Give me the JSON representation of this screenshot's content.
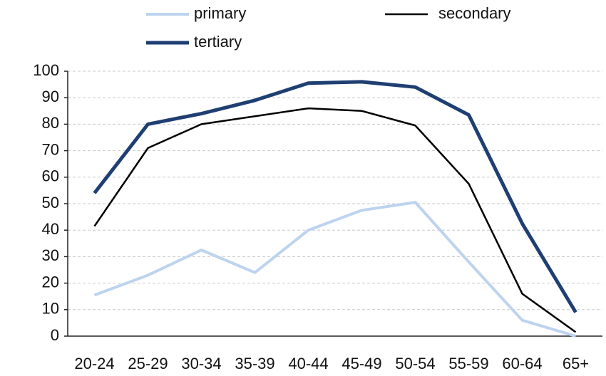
{
  "chart_data": {
    "type": "line",
    "categories": [
      "20-24",
      "25-29",
      "30-34",
      "35-39",
      "40-44",
      "45-49",
      "50-54",
      "55-59",
      "60-64",
      "65+"
    ],
    "series": [
      {
        "name": "primary",
        "color": "#bdd3ee",
        "values": [
          15.5,
          23,
          32.5,
          24,
          40,
          47.5,
          50.5,
          28,
          6,
          0
        ]
      },
      {
        "name": "secondary",
        "color": "#000000",
        "values": [
          41.5,
          71,
          80,
          83,
          86,
          85,
          79.5,
          57.5,
          16,
          1.5
        ]
      },
      {
        "name": "tertiary",
        "color": "#1f3f73",
        "values": [
          54,
          80,
          84,
          89,
          95.5,
          96,
          94,
          83.5,
          42.5,
          9
        ]
      }
    ],
    "ylim": [
      0,
      100
    ],
    "yticks": [
      0,
      10,
      20,
      30,
      40,
      50,
      60,
      70,
      80,
      90,
      100
    ],
    "grid": true
  }
}
